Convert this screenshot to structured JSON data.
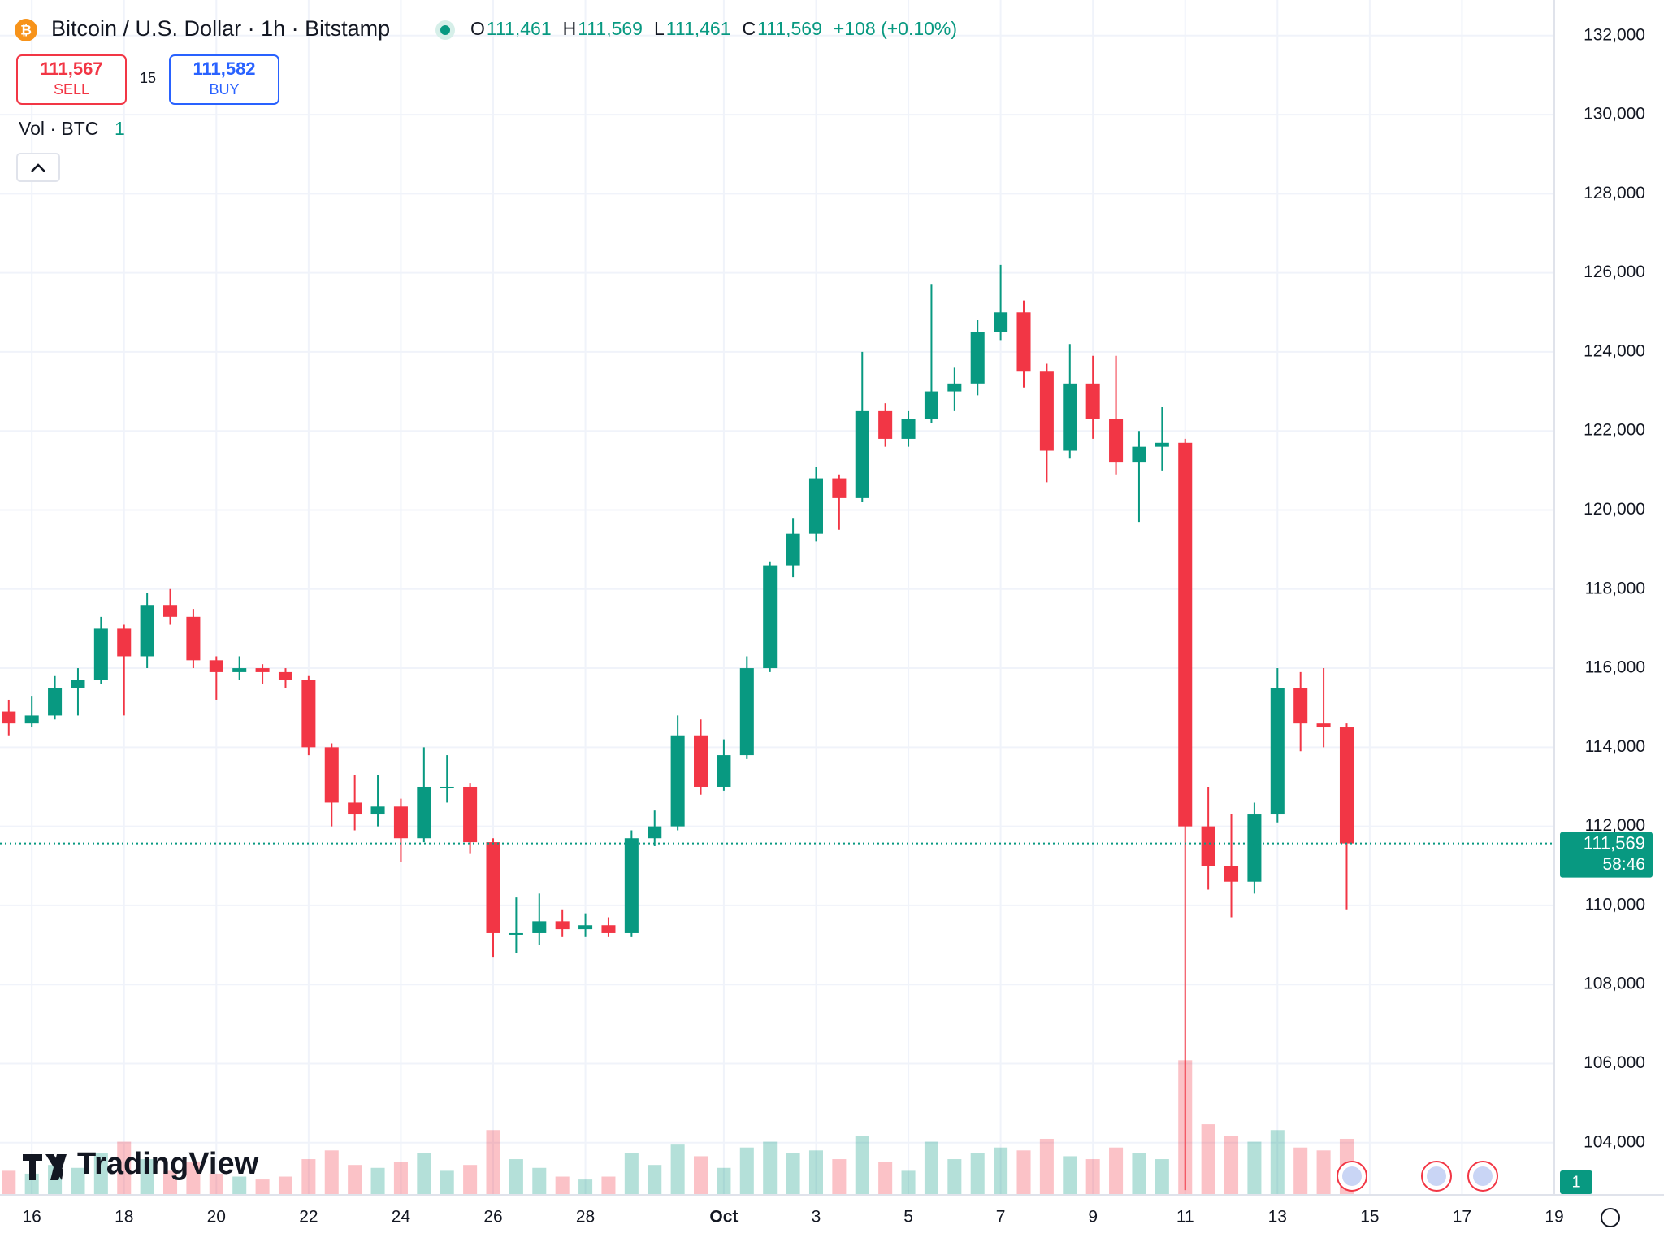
{
  "header": {
    "title": "Bitcoin / U.S. Dollar · 1h · Bitstamp",
    "ohlc": [
      {
        "key": "O",
        "text": "111,461"
      },
      {
        "key": "H",
        "text": "111,569"
      },
      {
        "key": "L",
        "text": "111,461"
      },
      {
        "key": "C",
        "text": "111,569"
      }
    ],
    "change": "+108 (+0.10%)",
    "sell": {
      "price": "111,567",
      "label": "SELL"
    },
    "spread": "15",
    "buy": {
      "price": "111,582",
      "label": "BUY"
    },
    "volume_legend": {
      "label": "Vol · BTC",
      "value": "1"
    },
    "logo": "TradingView",
    "badge": "1",
    "countdown": "58:46"
  },
  "chart_data": {
    "type": "candlestick",
    "x": [
      -0.5,
      0,
      0.5,
      1,
      1.5,
      2,
      2.5,
      3,
      3.5,
      4,
      4.5,
      5,
      5.5,
      6,
      6.5,
      7,
      7.5,
      8,
      8.5,
      9,
      9.5,
      10,
      10.5,
      11,
      11.5,
      12,
      12.5,
      13,
      13.5,
      14,
      14.5,
      15,
      15.5,
      16,
      16.5,
      17,
      17.5,
      18,
      18.5,
      19,
      19.5,
      20,
      20.5,
      21,
      21.5,
      22,
      22.5,
      23,
      23.5,
      24,
      24.5,
      25,
      25.5,
      26,
      26.5,
      27,
      27.5,
      28,
      28.5
    ],
    "open": [
      114900,
      114600,
      114800,
      115500,
      115700,
      117000,
      116300,
      117600,
      117300,
      116200,
      115900,
      116000,
      115900,
      115700,
      114000,
      112600,
      112300,
      112500,
      111700,
      113000,
      113000,
      111600,
      109300,
      109300,
      109600,
      109400,
      109500,
      109300,
      111700,
      112000,
      114300,
      113000,
      113800,
      116000,
      118600,
      119400,
      120800,
      120300,
      122500,
      121800,
      122300,
      123000,
      123200,
      124500,
      125000,
      123500,
      121500,
      123200,
      122300,
      121200,
      121600,
      121700,
      112000,
      111000,
      110600,
      112300,
      115500,
      114600,
      114500
    ],
    "high": [
      115200,
      115300,
      115800,
      116000,
      117300,
      117100,
      117900,
      118000,
      117500,
      116300,
      116300,
      116100,
      116000,
      115800,
      114100,
      113300,
      113300,
      112700,
      114000,
      113800,
      113100,
      111700,
      110200,
      110300,
      109900,
      109800,
      109700,
      111900,
      112400,
      114800,
      114700,
      114200,
      116300,
      118700,
      119800,
      121100,
      120900,
      124000,
      122700,
      122500,
      125700,
      123600,
      124800,
      126200,
      125300,
      123700,
      124200,
      123900,
      123900,
      122000,
      122600,
      121800,
      113000,
      112300,
      112600,
      116000,
      115900,
      116000,
      114600
    ],
    "low": [
      114300,
      114500,
      114700,
      114800,
      115600,
      114800,
      116000,
      117100,
      116000,
      115200,
      115700,
      115600,
      115500,
      113800,
      112000,
      111900,
      112000,
      111100,
      111600,
      112600,
      111300,
      108700,
      108800,
      109000,
      109200,
      109200,
      109200,
      109200,
      111500,
      111900,
      112800,
      112900,
      113700,
      115900,
      118300,
      119200,
      119500,
      120200,
      121600,
      121600,
      122200,
      122500,
      122900,
      124300,
      123100,
      120700,
      121300,
      121800,
      120900,
      119700,
      121000,
      102800,
      110400,
      109700,
      110300,
      112100,
      113900,
      114000,
      109900
    ],
    "close": [
      114600,
      114800,
      115500,
      115700,
      117000,
      116300,
      117600,
      117300,
      116200,
      115900,
      116000,
      115900,
      115700,
      114000,
      112600,
      112300,
      112500,
      111700,
      113000,
      113000,
      111600,
      109300,
      109300,
      109600,
      109400,
      109500,
      109300,
      111700,
      112000,
      114300,
      113000,
      113800,
      116000,
      118600,
      119400,
      120800,
      120300,
      122500,
      121800,
      122300,
      123000,
      123200,
      124500,
      125000,
      123500,
      121500,
      123200,
      122300,
      121200,
      121600,
      121700,
      112000,
      111000,
      110600,
      112300,
      115500,
      114600,
      114500,
      111569
    ],
    "volume": [
      40,
      35,
      50,
      45,
      70,
      90,
      60,
      40,
      55,
      35,
      30,
      25,
      30,
      60,
      75,
      50,
      45,
      55,
      70,
      40,
      50,
      110,
      60,
      45,
      30,
      25,
      30,
      70,
      50,
      85,
      65,
      45,
      80,
      90,
      70,
      75,
      60,
      100,
      55,
      40,
      90,
      60,
      70,
      80,
      75,
      95,
      65,
      60,
      80,
      70,
      60,
      230,
      120,
      100,
      90,
      110,
      80,
      75,
      95
    ],
    "up_color": "#089981",
    "down_color": "#f23645",
    "volume_lim": [
      0,
      250
    ],
    "xlim": [
      -0.69,
      33.0
    ],
    "xticks": [
      {
        "value": 0,
        "label": "16"
      },
      {
        "value": 2,
        "label": "18"
      },
      {
        "value": 4,
        "label": "20"
      },
      {
        "value": 6,
        "label": "22"
      },
      {
        "value": 8,
        "label": "24"
      },
      {
        "value": 10,
        "label": "26"
      },
      {
        "value": 12,
        "label": "28"
      },
      {
        "value": 15,
        "label": "Oct"
      },
      {
        "value": 17,
        "label": "3"
      },
      {
        "value": 19,
        "label": "5"
      },
      {
        "value": 21,
        "label": "7"
      },
      {
        "value": 23,
        "label": "9"
      },
      {
        "value": 25,
        "label": "11"
      },
      {
        "value": 27,
        "label": "13"
      },
      {
        "value": 29,
        "label": "15"
      },
      {
        "value": 31,
        "label": "17"
      },
      {
        "value": 33,
        "label": "19"
      }
    ],
    "ylim": [
      102700,
      132900
    ],
    "yticks": [
      {
        "value": 104000,
        "label": "104,000"
      },
      {
        "value": 106000,
        "label": "106,000"
      },
      {
        "value": 108000,
        "label": "108,000"
      },
      {
        "value": 110000,
        "label": "110,000"
      },
      {
        "value": 112000,
        "label": "112,000"
      },
      {
        "value": 114000,
        "label": "114,000"
      },
      {
        "value": 116000,
        "label": "116,000"
      },
      {
        "value": 118000,
        "label": "118,000"
      },
      {
        "value": 120000,
        "label": "120,000"
      },
      {
        "value": 122000,
        "label": "122,000"
      },
      {
        "value": 124000,
        "label": "124,000"
      },
      {
        "value": 126000,
        "label": "126,000"
      },
      {
        "value": 128000,
        "label": "128,000"
      },
      {
        "value": 130000,
        "label": "130,000"
      },
      {
        "value": 132000,
        "label": "132,000"
      }
    ],
    "last_price_label": "111,569",
    "grid": true
  }
}
